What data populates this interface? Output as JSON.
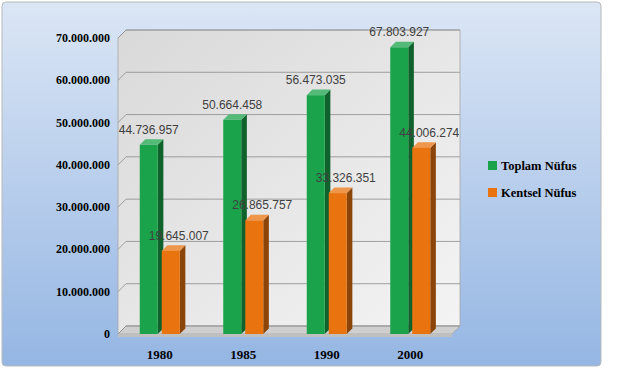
{
  "chart_data": {
    "type": "bar",
    "categories": [
      "1980",
      "1985",
      "1990",
      "2000"
    ],
    "series": [
      {
        "name": "Toplam Nüfus",
        "color": "#1aa34a",
        "values": [
          44736957,
          50664458,
          56473035,
          67803927
        ],
        "value_labels": [
          "44.736.957",
          "50.664.458",
          "56.473.035",
          "67.803.927"
        ]
      },
      {
        "name": "Kentsel Nüfus",
        "color": "#e8730f",
        "values": [
          19645007,
          26865757,
          33326351,
          44006274
        ],
        "value_labels": [
          "19.645.007",
          "26.865.757",
          "33.326.351",
          "44.006.274"
        ]
      }
    ],
    "ylim": [
      0,
      70000000
    ],
    "yticks": [
      0,
      {
        "value": 10000000,
        "label": "10.000.000"
      },
      {
        "value": 20000000,
        "label": "20.000.000"
      },
      {
        "value": 30000000,
        "label": "30.000.000"
      },
      {
        "value": 40000000,
        "label": "40.000.000"
      },
      {
        "value": 50000000,
        "label": "50.000.000"
      },
      {
        "value": 60000000,
        "label": "60.000.000"
      },
      {
        "value": 70000000,
        "label": "70.000.000"
      }
    ],
    "grid": true,
    "data_labels": true,
    "legend": "right"
  }
}
